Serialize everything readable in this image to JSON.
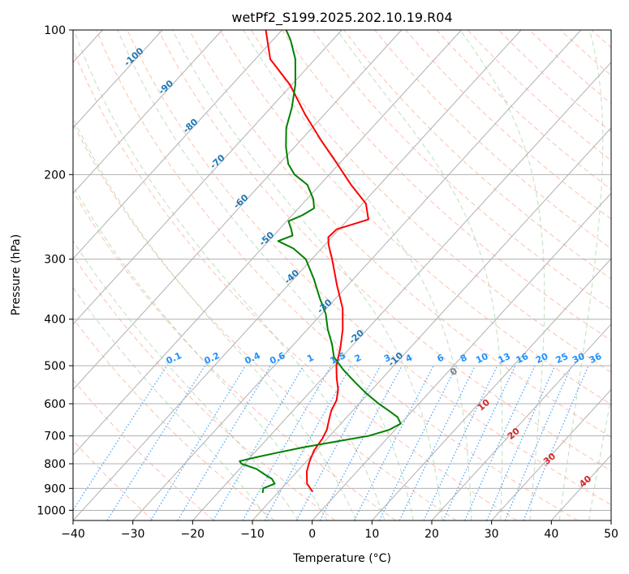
{
  "chart_data": {
    "type": "line",
    "title": "wetPf2_S199.2025.202.10.19.R04",
    "xlabel": "Temperature (°C)",
    "ylabel": "Pressure (hPa)",
    "xlim": [
      -40,
      50
    ],
    "ylim": [
      1050,
      100
    ],
    "y_scale": "log",
    "grid": true,
    "x_ticks": [
      -40,
      -30,
      -20,
      -10,
      0,
      10,
      20,
      30,
      40,
      50
    ],
    "y_ticks": [
      100,
      200,
      300,
      400,
      500,
      600,
      700,
      800,
      900,
      1000
    ],
    "skew_note": "skew-T log-p diagram; isotherms drawn diagonally",
    "colors": {
      "temperature": "#ff0000",
      "dewpoint": "#008000",
      "isotherm_labels": "#1f77b4",
      "mixing_ratio": "#1e90ff",
      "moist_adiabat_labels": "#d62728",
      "dry_adiabat": "#ff8c69",
      "moist_adiabat": "#7fbf7f",
      "grid": "#b0b0b0"
    },
    "isotherm_labels": [
      "-100",
      "-90",
      "-80",
      "-70",
      "-60",
      "-50",
      "-40",
      "-30",
      "-20",
      "-10"
    ],
    "mixing_ratio_labels": [
      "0.1",
      "0.2",
      "0.4",
      "0.6",
      "1",
      "1.5",
      "2",
      "3",
      "4",
      "6",
      "8",
      "10",
      "13",
      "16",
      "20",
      "25",
      "30",
      "36"
    ],
    "moist_adiabat_labels": [
      "0",
      "10",
      "20",
      "30",
      "40"
    ],
    "series": [
      {
        "key": "temperature",
        "points": [
          [
            915,
            -4.3
          ],
          [
            880,
            -6.5
          ],
          [
            830,
            -8.4
          ],
          [
            790,
            -9.5
          ],
          [
            750,
            -10.4
          ],
          [
            710,
            -10.8
          ],
          [
            680,
            -11.4
          ],
          [
            650,
            -12.5
          ],
          [
            620,
            -13.6
          ],
          [
            590,
            -14.3
          ],
          [
            560,
            -15.7
          ],
          [
            530,
            -17.7
          ],
          [
            500,
            -19.6
          ],
          [
            460,
            -21.6
          ],
          [
            420,
            -24.1
          ],
          [
            380,
            -27.3
          ],
          [
            340,
            -31.8
          ],
          [
            300,
            -36.6
          ],
          [
            280,
            -39.4
          ],
          [
            270,
            -40.6
          ],
          [
            260,
            -40.4
          ],
          [
            248,
            -36.6
          ],
          [
            230,
            -39.4
          ],
          [
            210,
            -44.8
          ],
          [
            190,
            -50.3
          ],
          [
            170,
            -56.5
          ],
          [
            150,
            -63.2
          ],
          [
            130,
            -70.3
          ],
          [
            115,
            -77.5
          ],
          [
            100,
            -82.7
          ]
        ]
      },
      {
        "key": "dewpoint",
        "points": [
          [
            920,
            -12.5
          ],
          [
            900,
            -13.1
          ],
          [
            880,
            -11.9
          ],
          [
            860,
            -13.1
          ],
          [
            840,
            -15.2
          ],
          [
            820,
            -17.2
          ],
          [
            800,
            -20.5
          ],
          [
            790,
            -21.2
          ],
          [
            775,
            -19.0
          ],
          [
            760,
            -16.4
          ],
          [
            740,
            -12.8
          ],
          [
            720,
            -8.2
          ],
          [
            700,
            -3.5
          ],
          [
            680,
            -1.0
          ],
          [
            660,
            0.0
          ],
          [
            640,
            -1.5
          ],
          [
            620,
            -4.0
          ],
          [
            600,
            -6.7
          ],
          [
            570,
            -10.5
          ],
          [
            540,
            -14.1
          ],
          [
            510,
            -17.8
          ],
          [
            480,
            -21.3
          ],
          [
            450,
            -23.7
          ],
          [
            420,
            -26.6
          ],
          [
            390,
            -29.3
          ],
          [
            360,
            -32.9
          ],
          [
            330,
            -36.6
          ],
          [
            300,
            -41.0
          ],
          [
            285,
            -44.7
          ],
          [
            275,
            -48.4
          ],
          [
            268,
            -46.8
          ],
          [
            260,
            -48.0
          ],
          [
            250,
            -49.7
          ],
          [
            243,
            -48.3
          ],
          [
            235,
            -47.4
          ],
          [
            225,
            -48.9
          ],
          [
            210,
            -52.1
          ],
          [
            200,
            -55.8
          ],
          [
            190,
            -58.5
          ],
          [
            175,
            -61.5
          ],
          [
            160,
            -64.3
          ],
          [
            145,
            -66.5
          ],
          [
            130,
            -69.4
          ],
          [
            115,
            -73.3
          ],
          [
            105,
            -77.0
          ],
          [
            100,
            -79.3
          ]
        ]
      }
    ]
  }
}
